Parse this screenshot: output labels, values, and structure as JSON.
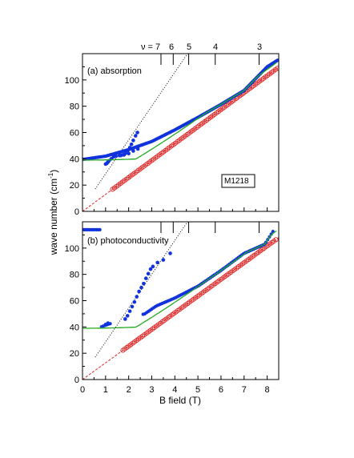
{
  "figure": {
    "ylabel": "wave number (cm",
    "ylabel_sup": "-1",
    "ylabel_close": ")",
    "xlabel": "B field (T)",
    "nu_labels": [
      {
        "text": "ν = 7",
        "b": 3.4
      },
      {
        "text": "6",
        "b": 3.93
      },
      {
        "text": "5",
        "b": 4.6
      },
      {
        "text": "4",
        "b": 5.75
      },
      {
        "text": "3",
        "b": 7.65
      }
    ],
    "box_label": "M1218"
  },
  "chart_data": [
    {
      "type": "scatter",
      "title": "(a) absorption",
      "xlim": [
        0,
        8.5
      ],
      "ylim": [
        0,
        120
      ],
      "x_ticks": [
        0,
        1,
        2,
        3,
        4,
        5,
        6,
        7,
        8
      ],
      "y_ticks": [
        0,
        20,
        40,
        60,
        80,
        100
      ],
      "top_ticks_b": [
        3.4,
        3.93,
        4.6,
        5.75,
        7.65
      ],
      "colors": {
        "blue": "#1133dd",
        "red": "#e02020",
        "green": "#22aa22",
        "black": "#000000"
      },
      "series": [
        {
          "kind": "blue_dots_cyclotron",
          "x_range": [
            0.0,
            8.45
          ],
          "note_shape": "sqrt(39.5^2 + (13.8B)^2)",
          "sample_points": [
            [
              0.0,
              39.5
            ],
            [
              1.0,
              42.0
            ],
            [
              2.0,
              47.0
            ],
            [
              3.0,
              53.2
            ],
            [
              4.0,
              62.0
            ],
            [
              5.0,
              71.5
            ],
            [
              6.0,
              81.4
            ],
            [
              7.0,
              92.0
            ],
            [
              8.0,
              110.0
            ],
            [
              8.45,
              115.0
            ]
          ]
        },
        {
          "kind": "blue_dots_upper_branch",
          "points": [
            [
              1.65,
              42.5
            ],
            [
              1.75,
              43.0
            ],
            [
              1.85,
              44.0
            ],
            [
              1.95,
              46.0
            ],
            [
              2.05,
              48.5
            ],
            [
              2.12,
              51.0
            ],
            [
              2.2,
              54.0
            ],
            [
              2.3,
              57.5
            ],
            [
              2.38,
              60.0
            ]
          ]
        },
        {
          "kind": "blue_dots_lower_branch",
          "points": [
            [
              1.0,
              36.0
            ],
            [
              1.05,
              36.5
            ],
            [
              1.1,
              37.5
            ],
            [
              1.15,
              38.5
            ],
            [
              1.25,
              40.0
            ],
            [
              1.35,
              41.5
            ],
            [
              1.45,
              42.0
            ],
            [
              1.6,
              42.5
            ],
            [
              1.8,
              43.0
            ],
            [
              2.0,
              44.0
            ],
            [
              2.2,
              46.0
            ],
            [
              2.4,
              47.5
            ]
          ]
        },
        {
          "kind": "red_open_circles",
          "x_range": [
            1.3,
            8.45
          ],
          "slope": 12.9
        },
        {
          "kind": "green_fit_line",
          "x_range": [
            0.0,
            8.45
          ]
        },
        {
          "kind": "red_dashed_line",
          "slope": 12.9
        },
        {
          "kind": "black_dotted_line",
          "x_range": [
            0.55,
            4.55
          ],
          "y_range": [
            17.0,
            120.0
          ]
        }
      ]
    },
    {
      "type": "scatter",
      "title": "(b) photoconductivity",
      "xlim": [
        0,
        8.5
      ],
      "ylim": [
        0,
        120
      ],
      "x_ticks": [
        0,
        1,
        2,
        3,
        4,
        5,
        6,
        7,
        8
      ],
      "y_ticks": [
        0,
        20,
        40,
        60,
        80,
        100
      ],
      "top_ticks_b": [
        3.4,
        3.93,
        4.6,
        5.75,
        7.65
      ],
      "series": [
        {
          "kind": "blue_dots_cyclotron",
          "x_range": [
            0.0,
            8.3
          ],
          "sample_points": [
            [
              0.8,
              40.0
            ],
            [
              1.1,
              42.0
            ],
            [
              2.7,
              50.0
            ],
            [
              3.2,
              56.0
            ],
            [
              4.0,
              62.0
            ],
            [
              5.0,
              71.0
            ],
            [
              6.0,
              83.0
            ],
            [
              7.0,
              96.0
            ],
            [
              7.9,
              103.0
            ],
            [
              8.3,
              114.0
            ]
          ]
        },
        {
          "kind": "blue_dots_upper_branch",
          "points": [
            [
              1.85,
              46.0
            ],
            [
              1.95,
              48.5
            ],
            [
              2.05,
              52.0
            ],
            [
              2.15,
              55.5
            ],
            [
              2.25,
              59.0
            ],
            [
              2.35,
              63.0
            ],
            [
              2.45,
              67.0
            ],
            [
              2.55,
              70.0
            ],
            [
              2.65,
              73.0
            ],
            [
              2.75,
              77.0
            ],
            [
              2.85,
              80.5
            ],
            [
              2.95,
              84.0
            ],
            [
              3.05,
              86.0
            ],
            [
              3.25,
              89.0
            ],
            [
              3.5,
              91.0
            ],
            [
              3.8,
              96.0
            ]
          ]
        },
        {
          "kind": "red_open_circles",
          "x_range": [
            1.75,
            8.45
          ],
          "slope": 12.7
        },
        {
          "kind": "green_fit_line",
          "x_range": [
            0.0,
            8.45
          ]
        },
        {
          "kind": "red_dashed_line",
          "slope": 12.7
        },
        {
          "kind": "black_dotted_line",
          "x_range": [
            0.55,
            4.55
          ],
          "y_range": [
            17.0,
            120.0
          ]
        }
      ]
    }
  ]
}
